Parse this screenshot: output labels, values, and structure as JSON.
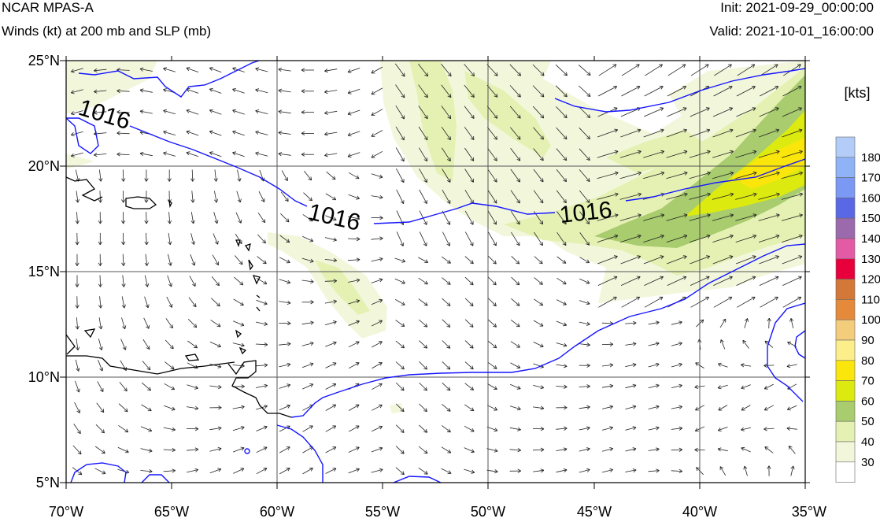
{
  "header": {
    "model": "NCAR MPAS-A",
    "description": "Winds (kt) at 200 mb and SLP (mb)",
    "init": "Init: 2021-09-29_00:00:00",
    "valid": "Valid: 2021-10-01_16:00:00"
  },
  "axes": {
    "lon_ticks": [
      "70°W",
      "65°W",
      "60°W",
      "55°W",
      "50°W",
      "45°W",
      "40°W",
      "35°W"
    ],
    "lat_ticks": [
      "25°N",
      "20°N",
      "15°N",
      "10°N",
      "5°N"
    ],
    "lon_range": [
      -70,
      -35
    ],
    "lat_range": [
      5,
      25
    ],
    "grid": true
  },
  "colorbar": {
    "unit": "[kts]",
    "levels": [
      "30",
      "40",
      "50",
      "60",
      "70",
      "80",
      "90",
      "100",
      "110",
      "120",
      "130",
      "140",
      "150",
      "160",
      "170",
      "180"
    ],
    "colors": [
      "#ffffff",
      "#f2f7dc",
      "#e4f1b3",
      "#a8cc6e",
      "#dcea10",
      "#fbe60c",
      "#fdee8c",
      "#f4cd7c",
      "#e58a3a",
      "#d4783a",
      "#e8003c",
      "#e35aa5",
      "#9a6aac",
      "#5a68e6",
      "#7a98f4",
      "#8fb3f6",
      "#b3cdf8"
    ]
  },
  "contour": {
    "label": "1016",
    "color": "#1515ff"
  },
  "wind_arrows": {
    "color": "#222222",
    "units": "kt"
  }
}
